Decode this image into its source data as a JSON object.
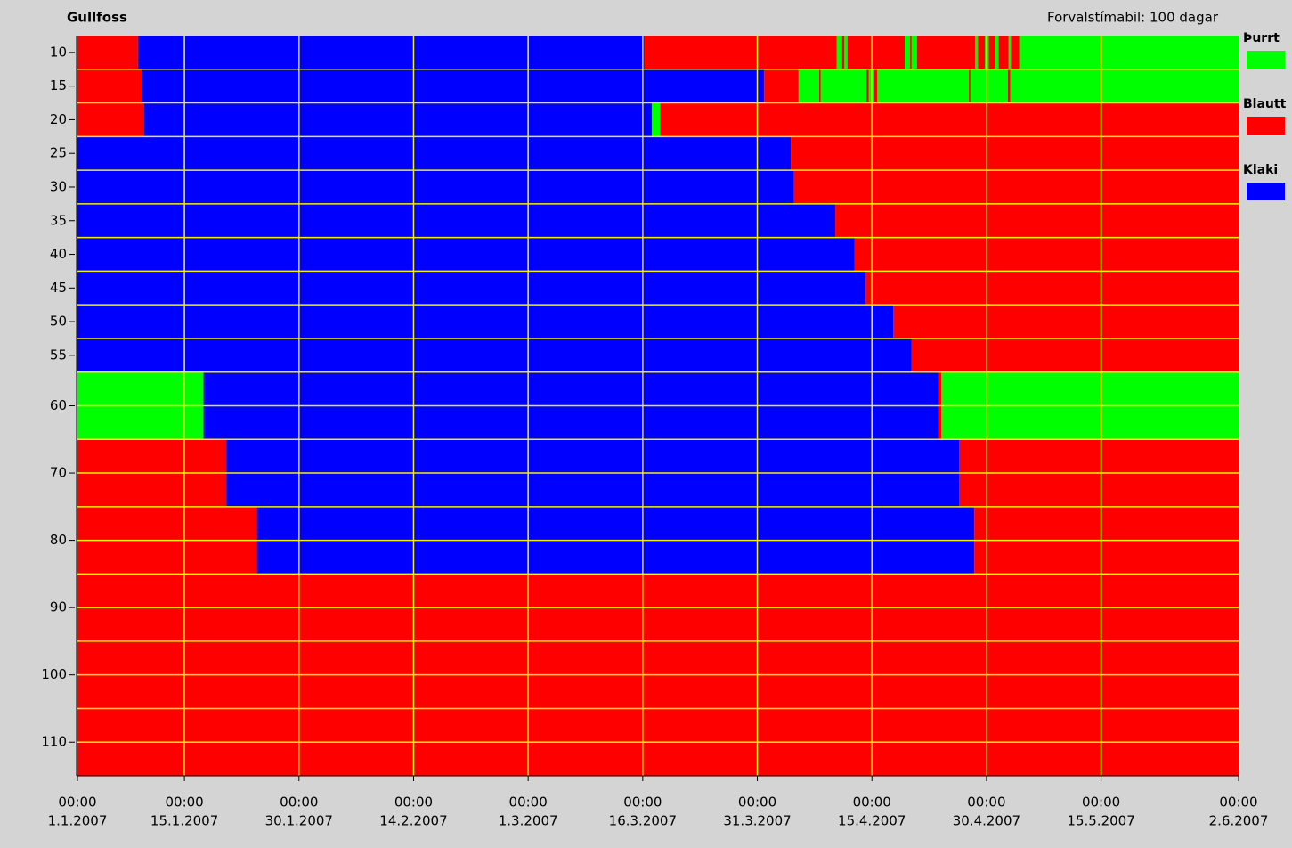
{
  "chart_data": {
    "type": "state-timeline",
    "title": "Gullfoss",
    "subtitle": "Forvalstímabil: 100 dagar",
    "series": [
      {
        "name": "Þurrt",
        "color": "#00ff00"
      },
      {
        "name": "Blautt",
        "color": "#ff0000"
      },
      {
        "name": "Klaki",
        "color": "#0000ff"
      }
    ],
    "categories": [
      10,
      15,
      20,
      25,
      30,
      35,
      40,
      45,
      50,
      55,
      60,
      70,
      80,
      90,
      100,
      110
    ],
    "rows": [
      [
        [
          0,
          7.9,
          1
        ],
        [
          7.9,
          74.2,
          2
        ],
        [
          74.2,
          99.4,
          1
        ],
        [
          99.4,
          100.1,
          0
        ],
        [
          100.1,
          100.4,
          1
        ],
        [
          100.4,
          100.8,
          0
        ],
        [
          100.8,
          108.3,
          1
        ],
        [
          108.3,
          109.0,
          0
        ],
        [
          109.0,
          109.2,
          1
        ],
        [
          109.2,
          109.9,
          0
        ],
        [
          109.9,
          117.5,
          1
        ],
        [
          117.5,
          117.9,
          0
        ],
        [
          117.9,
          118.8,
          1
        ],
        [
          118.8,
          119.3,
          0
        ],
        [
          119.3,
          120.1,
          1
        ],
        [
          120.1,
          120.6,
          0
        ],
        [
          120.6,
          121.9,
          1
        ],
        [
          121.9,
          122.2,
          0
        ],
        [
          122.2,
          123.3,
          1
        ],
        [
          123.3,
          152,
          0
        ]
      ],
      [
        [
          0,
          8.4,
          1
        ],
        [
          8.4,
          89.9,
          2
        ],
        [
          89.9,
          94.4,
          1
        ],
        [
          94.4,
          97.1,
          0
        ],
        [
          97.1,
          97.3,
          1
        ],
        [
          97.3,
          103.3,
          0
        ],
        [
          103.3,
          103.6,
          1
        ],
        [
          103.6,
          104.2,
          0
        ],
        [
          104.2,
          104.7,
          1
        ],
        [
          104.7,
          116.7,
          0
        ],
        [
          116.7,
          116.9,
          1
        ],
        [
          116.9,
          121.8,
          0
        ],
        [
          121.8,
          122.1,
          1
        ],
        [
          122.1,
          152,
          0
        ]
      ],
      [
        [
          0,
          8.7,
          1
        ],
        [
          8.7,
          75.2,
          2
        ],
        [
          75.2,
          76.3,
          0
        ],
        [
          76.3,
          152,
          1
        ]
      ],
      [
        [
          0,
          93.4,
          2
        ],
        [
          93.4,
          152,
          1
        ]
      ],
      [
        [
          0,
          93.8,
          2
        ],
        [
          93.8,
          152,
          1
        ]
      ],
      [
        [
          0,
          99.2,
          2
        ],
        [
          99.2,
          152,
          1
        ]
      ],
      [
        [
          0,
          101.7,
          2
        ],
        [
          101.7,
          152,
          1
        ]
      ],
      [
        [
          0,
          103.2,
          2
        ],
        [
          103.2,
          152,
          1
        ]
      ],
      [
        [
          0,
          106.8,
          2
        ],
        [
          106.8,
          152,
          1
        ]
      ],
      [
        [
          0,
          109.2,
          2
        ],
        [
          109.2,
          152,
          1
        ]
      ],
      [
        [
          0,
          16.5,
          0
        ],
        [
          16.5,
          112.7,
          2
        ],
        [
          112.7,
          113.1,
          1
        ],
        [
          113.1,
          152,
          0
        ]
      ],
      [
        [
          0,
          19.5,
          1
        ],
        [
          19.5,
          115.4,
          2
        ],
        [
          115.4,
          152,
          1
        ]
      ],
      [
        [
          0,
          23.5,
          1
        ],
        [
          23.5,
          117.4,
          2
        ],
        [
          117.4,
          152,
          1
        ]
      ],
      [
        [
          0,
          152,
          1
        ]
      ],
      [
        [
          0,
          152,
          1
        ]
      ],
      [
        [
          0,
          152,
          1
        ]
      ]
    ],
    "xlim": [
      0,
      152
    ],
    "xticks": [
      {
        "value": 0,
        "label": [
          "00:00",
          "1.1.2007"
        ]
      },
      {
        "value": 14,
        "label": [
          "00:00",
          "15.1.2007"
        ]
      },
      {
        "value": 29,
        "label": [
          "00:00",
          "30.1.2007"
        ]
      },
      {
        "value": 44,
        "label": [
          "00:00",
          "14.2.2007"
        ]
      },
      {
        "value": 59,
        "label": [
          "00:00",
          "1.3.2007"
        ]
      },
      {
        "value": 74,
        "label": [
          "00:00",
          "16.3.2007"
        ]
      },
      {
        "value": 89,
        "label": [
          "00:00",
          "31.3.2007"
        ]
      },
      {
        "value": 104,
        "label": [
          "00:00",
          "15.4.2007"
        ]
      },
      {
        "value": 119,
        "label": [
          "00:00",
          "30.4.2007"
        ]
      },
      {
        "value": 134,
        "label": [
          "00:00",
          "15.5.2007"
        ]
      },
      {
        "value": 152,
        "label": [
          "00:00",
          "2.6.2007"
        ]
      }
    ],
    "grid": true,
    "grid_color": "#f0f000",
    "legend": "right"
  }
}
